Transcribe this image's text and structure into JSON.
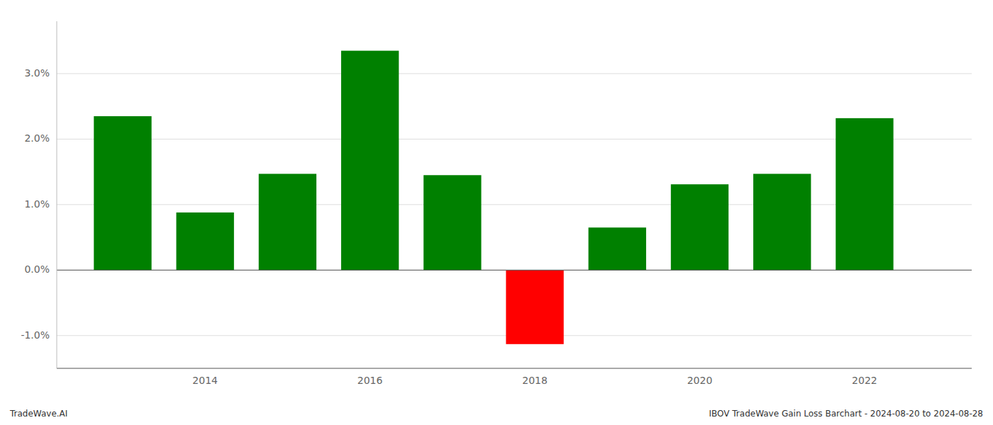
{
  "chart_data": {
    "type": "bar",
    "x": [
      2013,
      2014,
      2015,
      2016,
      2017,
      2018,
      2019,
      2020,
      2021,
      2022
    ],
    "values": [
      2.35,
      0.88,
      1.47,
      3.35,
      1.45,
      -1.13,
      0.65,
      1.31,
      1.47,
      2.32
    ],
    "colors": [
      "#008000",
      "#008000",
      "#008000",
      "#008000",
      "#008000",
      "#ff0000",
      "#008000",
      "#008000",
      "#008000",
      "#008000"
    ],
    "xlim": [
      2012.2,
      2023.3
    ],
    "xticks": [
      2014,
      2016,
      2018,
      2020,
      2022
    ],
    "ylim": [
      -1.5,
      3.8
    ],
    "yticks": [
      {
        "value": -1.0,
        "label": "-1.0%"
      },
      {
        "value": 0.0,
        "label": "0.0%"
      },
      {
        "value": 1.0,
        "label": "1.0%"
      },
      {
        "value": 2.0,
        "label": "2.0%"
      },
      {
        "value": 3.0,
        "label": "3.0%"
      }
    ],
    "grid": true,
    "annotations": [
      "TradeWave.AI",
      "IBOV TradeWave Gain Loss Barchart - 2024-08-20 to 2024-08-28"
    ]
  }
}
